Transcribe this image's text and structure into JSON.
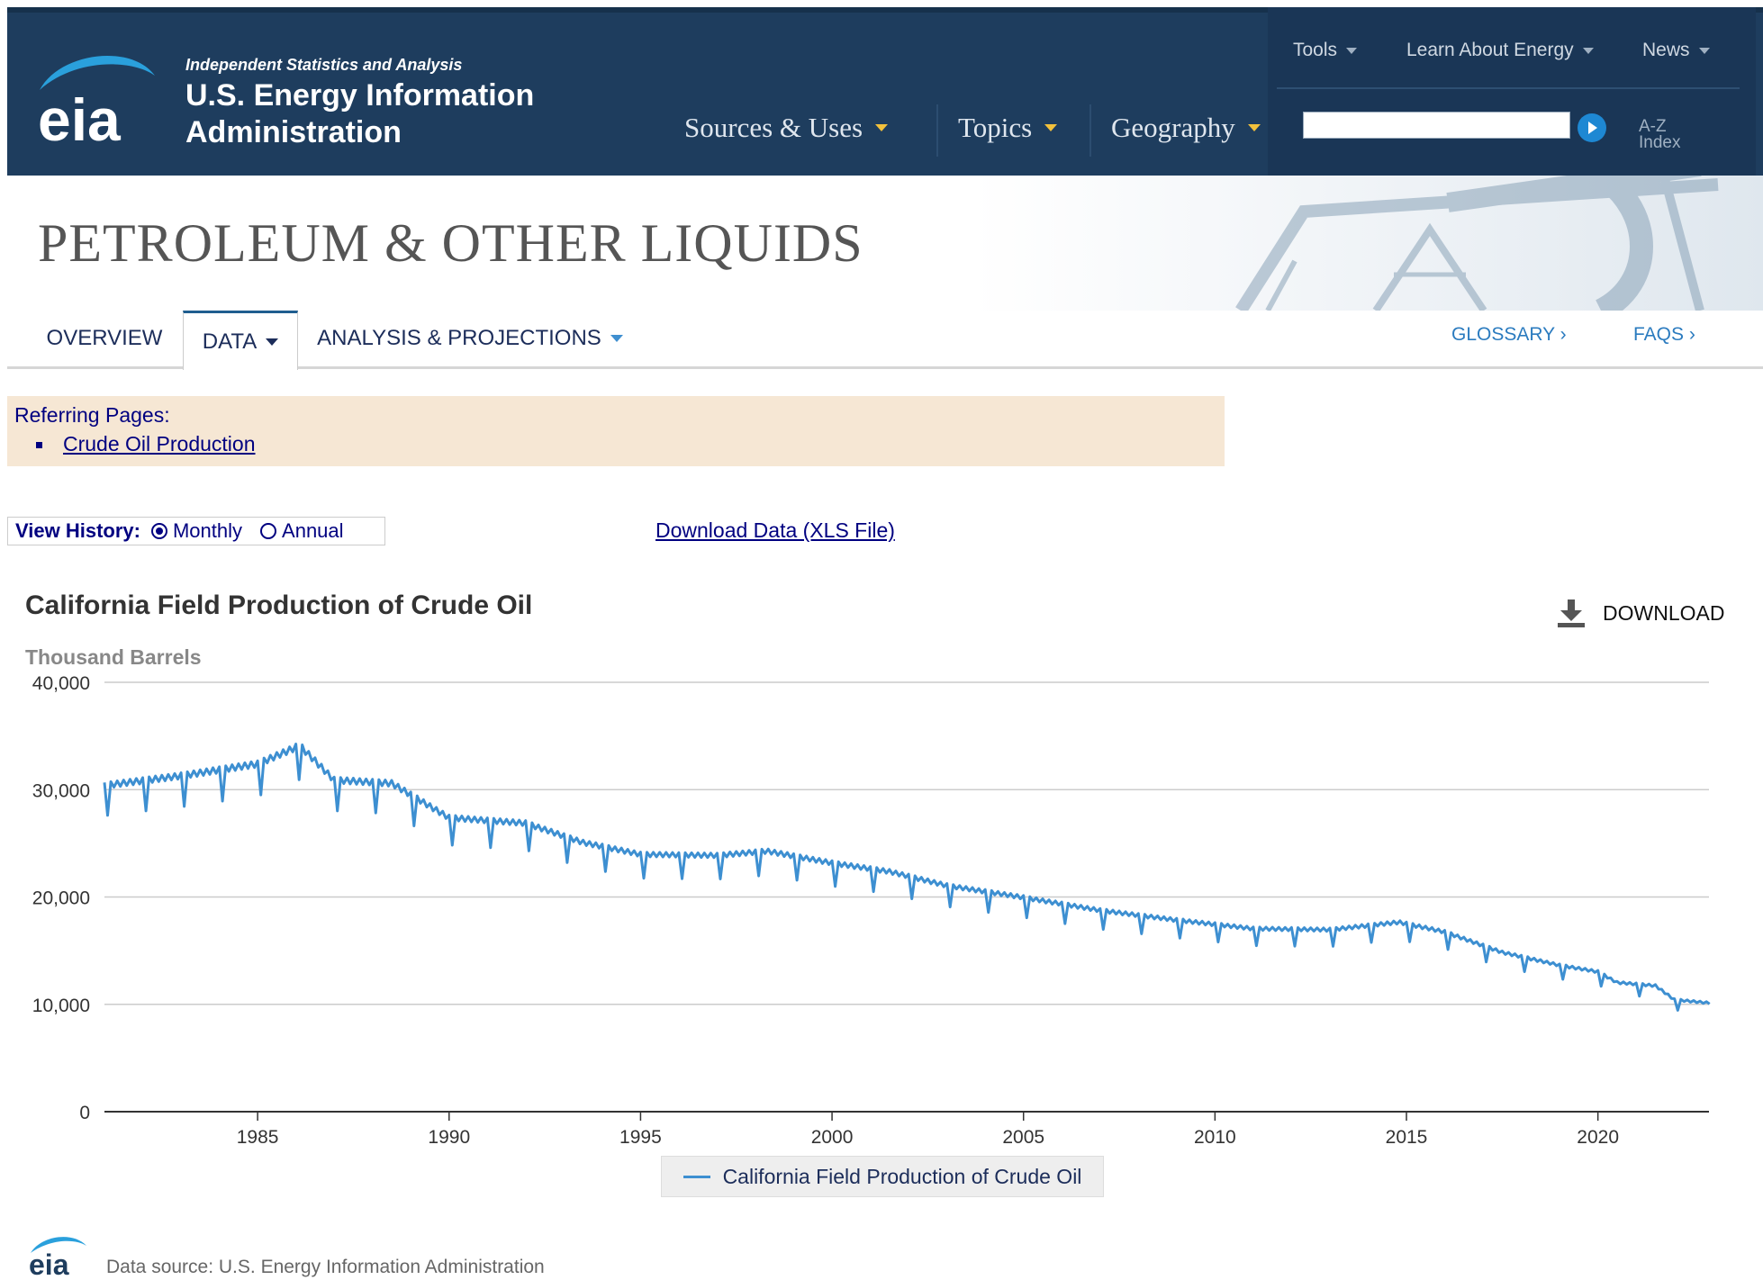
{
  "header": {
    "logo_text": "eia",
    "tagline": "Independent Statistics and Analysis",
    "org_name": "U.S. Energy Information Administration",
    "nav": [
      {
        "label": "Sources & Uses"
      },
      {
        "label": "Topics"
      },
      {
        "label": "Geography"
      }
    ],
    "tools": [
      {
        "label": "Tools"
      },
      {
        "label": "Learn About Energy"
      },
      {
        "label": "News"
      }
    ],
    "search": {
      "value": "",
      "placeholder": ""
    },
    "az_index": "A-Z Index",
    "colors": {
      "header_bg": "#1e3d5e",
      "caret": "#f2c13c"
    }
  },
  "banner": {
    "title": "PETROLEUM & OTHER LIQUIDS"
  },
  "subnav": {
    "tabs": [
      {
        "label": "OVERVIEW"
      },
      {
        "label": "DATA"
      },
      {
        "label": "ANALYSIS & PROJECTIONS"
      }
    ],
    "links": [
      {
        "label": "GLOSSARY ›"
      },
      {
        "label": "FAQS ›"
      }
    ]
  },
  "referring": {
    "title": "Referring Pages:",
    "links": [
      {
        "label": "Crude Oil Production"
      }
    ]
  },
  "view_history": {
    "label": "View History:",
    "options": [
      {
        "label": "Monthly",
        "selected": true
      },
      {
        "label": "Annual",
        "selected": false
      }
    ]
  },
  "download_xls": "Download Data (XLS File)",
  "chart": {
    "title": "California Field Production of Crude Oil",
    "download_label": "DOWNLOAD",
    "legend": "California Field Production of Crude Oil",
    "data_source": "Data source: U.S. Energy Information Administration",
    "footer_logo": "eia"
  },
  "chart_data": {
    "type": "line",
    "title": "California Field Production of Crude Oil",
    "ylabel": "Thousand Barrels",
    "xlabel": "",
    "ylim": [
      0,
      40000
    ],
    "xlim": [
      1981.0,
      2022.9
    ],
    "y_ticks": [
      "0",
      "10,000",
      "20,000",
      "30,000",
      "40,000"
    ],
    "y_tick_values": [
      0,
      10000,
      20000,
      30000,
      40000
    ],
    "x_ticks": [
      "1985",
      "1990",
      "1995",
      "2000",
      "2005",
      "2010",
      "2015",
      "2020"
    ],
    "x_tick_values": [
      1985,
      1990,
      1995,
      2000,
      2005,
      2010,
      2015,
      2020
    ],
    "grid": true,
    "legend_position": "bottom-center",
    "series": [
      {
        "name": "California Field Production of Crude Oil",
        "color": "#3d8fd1",
        "frequency": "monthly",
        "february_dip_ratio": 0.91,
        "anchors": {
          "x": [
            1981.0,
            1983.0,
            1985.0,
            1986.1,
            1987.0,
            1988.5,
            1990.0,
            1992.0,
            1993.5,
            1995.0,
            1997.0,
            1998.3,
            2000.0,
            2001.5,
            2003.0,
            2005.0,
            2007.0,
            2009.0,
            2011.0,
            2013.0,
            2014.8,
            2016.0,
            2017.5,
            2019.0,
            2020.0,
            2020.5,
            2021.5,
            2022.0,
            2022.9
          ],
          "y": [
            30300,
            31200,
            32300,
            34000,
            30800,
            30500,
            27300,
            26800,
            25000,
            23900,
            23800,
            24200,
            23100,
            22300,
            21000,
            19900,
            18700,
            17800,
            17000,
            16900,
            17600,
            16700,
            14800,
            13600,
            13000,
            12000,
            11700,
            10400,
            10100
          ]
        }
      }
    ]
  }
}
